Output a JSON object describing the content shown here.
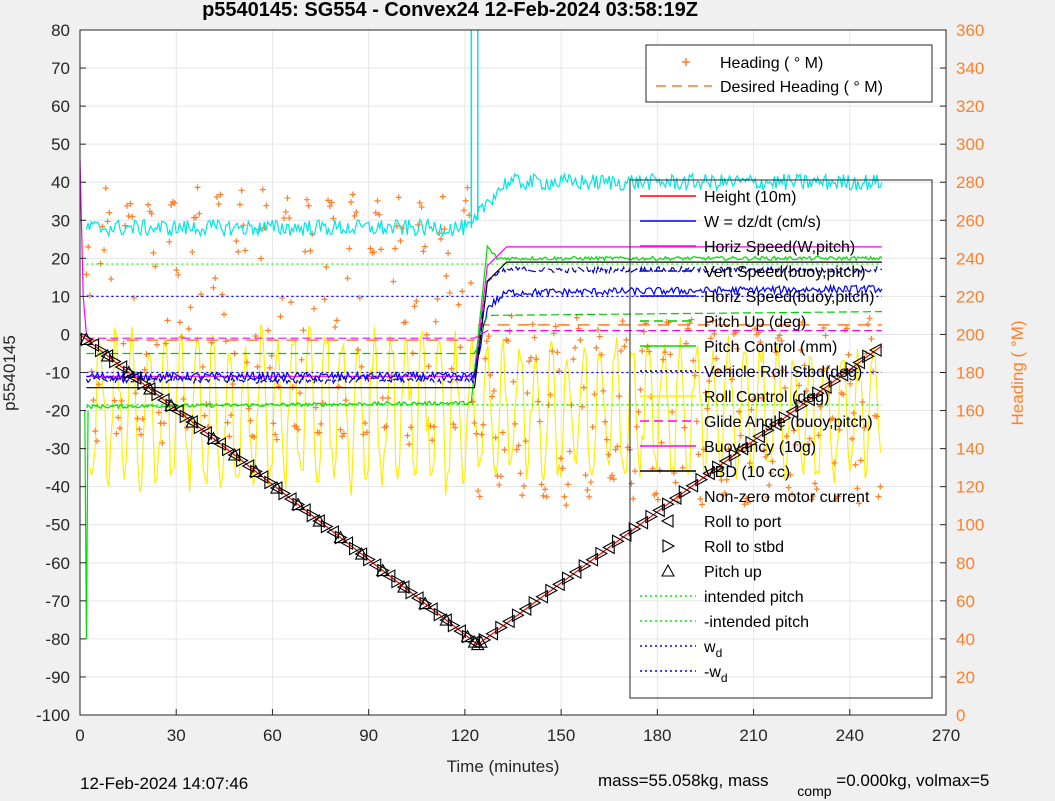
{
  "chart_data": {
    "type": "line",
    "title": "p5540145: SG554 - Convex24 12-Feb-2024 03:58:19Z",
    "xlabel": "Time (minutes)",
    "ylabel": "p5540145",
    "y2label": "Heading (  °M)",
    "xlim": [
      0,
      270
    ],
    "ylim": [
      -100,
      80
    ],
    "y2lim": [
      0,
      360
    ],
    "xticks": [
      0,
      30,
      60,
      90,
      120,
      150,
      180,
      210,
      240,
      270
    ],
    "yticks": [
      -100,
      -90,
      -80,
      -70,
      -60,
      -50,
      -40,
      -30,
      -20,
      -10,
      0,
      10,
      20,
      30,
      40,
      50,
      60,
      70,
      80
    ],
    "y2ticks": [
      0,
      20,
      40,
      60,
      80,
      100,
      120,
      140,
      160,
      180,
      200,
      220,
      240,
      260,
      280,
      300,
      320,
      340,
      360
    ],
    "grid": true,
    "legend_heading": {
      "placement": "top-right",
      "entries": [
        {
          "label": "Heading (  ° M)",
          "color": "#ff7f27",
          "style": "plus"
        },
        {
          "label": "Desired Heading (    ° M)",
          "color": "#ff7f27",
          "style": "dash"
        }
      ]
    },
    "legend_main": {
      "placement": "right",
      "entries": [
        {
          "label": "Height (10m)",
          "color": "#ff0000",
          "style": "solid"
        },
        {
          "label": "W = dz/dt (cm/s)",
          "color": "#0000ff",
          "style": "solid"
        },
        {
          "label": "Horiz Speed(W,pitch)",
          "color": "#ff00ff",
          "style": "solid"
        },
        {
          "label": "Vert Speed(buoy,pitch)",
          "color": "#0000cc",
          "style": "dash"
        },
        {
          "label": "Horiz Speed(buoy,pitch)",
          "color": "#0000ff",
          "style": "solid"
        },
        {
          "label": "Pitch Up (deg)",
          "color": "#00cc00",
          "style": "dash"
        },
        {
          "label": "Pitch Control (mm)",
          "color": "#00dd00",
          "style": "solid"
        },
        {
          "label": "Vehicle Roll Stbd(deg)",
          "color": "#000000",
          "style": "dot"
        },
        {
          "label": "Roll Control (deg)",
          "color": "#ffee00",
          "style": "solid"
        },
        {
          "label": "Glide Angle (buoy,pitch)",
          "color": "#ff00ff",
          "style": "dash"
        },
        {
          "label": "Buoyancy (10g)",
          "color": "#ff00ff",
          "style": "solid"
        },
        {
          "label": "VBD (10 cc)",
          "color": "#000000",
          "style": "solid"
        },
        {
          "label": "Non-zero motor current",
          "color": "#000000",
          "style": "none"
        },
        {
          "label": "Roll to port",
          "color": "#000000",
          "style": "tri-left"
        },
        {
          "label": "Roll to stbd",
          "color": "#000000",
          "style": "tri-right"
        },
        {
          "label": "Pitch up",
          "color": "#000000",
          "style": "tri-up"
        },
        {
          "label": "intended pitch",
          "color": "#00ee00",
          "style": "dot"
        },
        {
          "label": "-intended pitch",
          "color": "#00ee00",
          "style": "dot"
        },
        {
          "label": "w",
          "sub": "d",
          "color": "#0000ff",
          "style": "dot"
        },
        {
          "label": "-w",
          "sub": "d",
          "color": "#0000ff",
          "style": "dot"
        }
      ]
    },
    "series": [
      {
        "name": "Height (10m)",
        "color": "#ff0000",
        "x": [
          0,
          124,
          250
        ],
        "y": [
          0,
          -81.5,
          -3
        ]
      },
      {
        "name": "Pitch Control (mm)",
        "color": "#00dd00",
        "x": [
          2,
          120,
          122,
          127,
          130,
          250
        ],
        "y": [
          -19,
          -18,
          -18,
          23,
          20,
          20
        ]
      },
      {
        "name": "Horiz Speed(W,pitch)",
        "color": "#ff00ff",
        "x": [
          2,
          122,
          123,
          127,
          133,
          250
        ],
        "y": [
          -11,
          -11,
          -11,
          18,
          23,
          23
        ]
      },
      {
        "name": "W = dz/dt (cm/s)",
        "color": "#0000ff",
        "x": [
          2,
          122,
          123,
          127,
          133,
          250
        ],
        "y": [
          -11,
          -11,
          -11,
          7,
          11,
          12
        ]
      },
      {
        "name": "Vert Speed(buoy,pitch)",
        "color": "#0000cc",
        "x": [
          2,
          122,
          123,
          127,
          133,
          250
        ],
        "y": [
          -12,
          -12,
          -12,
          14,
          17,
          17
        ]
      },
      {
        "name": "VBD (10 cc)",
        "color": "#000000",
        "x": [
          2,
          122,
          123,
          127,
          133,
          250
        ],
        "y": [
          -14,
          -14,
          -14,
          14,
          19,
          19
        ]
      },
      {
        "name": "Pitch Up (deg)",
        "color": "#00cc00",
        "x": [
          2,
          122,
          123,
          127,
          250
        ],
        "y": [
          -5,
          -5,
          -5,
          5,
          6
        ]
      },
      {
        "name": "Glide Angle (buoy,pitch)",
        "color": "#ff00ff",
        "x": [
          2,
          122,
          123,
          127,
          250
        ],
        "y": [
          -1,
          -1,
          -1,
          1,
          1
        ]
      },
      {
        "name": "cyan trace",
        "color": "#00e5e5",
        "x": [
          2,
          120,
          122,
          127,
          133,
          250
        ],
        "y": [
          28,
          28,
          28,
          35,
          40,
          40
        ]
      }
    ],
    "reference_lines": [
      {
        "y": 18.5,
        "color": "#00ee00",
        "style": "dot"
      },
      {
        "y": -18.5,
        "color": "#00ee00",
        "style": "dot"
      },
      {
        "y": 10,
        "color": "#0000ff",
        "style": "dot"
      },
      {
        "y": -10,
        "color": "#0000ff",
        "style": "dot"
      }
    ],
    "heading": {
      "desired_dive": 197,
      "desired_climb": 205,
      "range_dive": [
        140,
        280
      ],
      "range_climb": [
        110,
        210
      ]
    }
  },
  "footer": {
    "timestamp": "12-Feb-2024 14:07:46",
    "mass": "mass=55.058kg, mass",
    "comp_sub": "comp",
    "mass_comp": "=0.000kg, volmax=5"
  }
}
